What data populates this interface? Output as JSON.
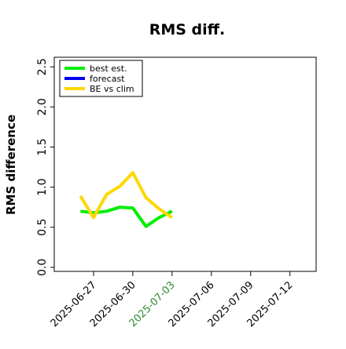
{
  "chart_data": {
    "type": "line",
    "title": "RMS diff.",
    "xlabel": "",
    "ylabel": "RMS difference",
    "ylim": [
      -0.05,
      2.62
    ],
    "xlim": [
      "2025-06-24",
      "2025-07-14"
    ],
    "yticks": [
      "0.0",
      "0.5",
      "1.0",
      "1.5",
      "2.0",
      "2.5"
    ],
    "xticks": [
      {
        "label": "2025-06-27",
        "date": "2025-06-27",
        "color": "#000000"
      },
      {
        "label": "2025-06-30",
        "date": "2025-06-30",
        "color": "#000000"
      },
      {
        "label": "2025-07-03",
        "date": "2025-07-03",
        "color": "#2e8b2e"
      },
      {
        "label": "2025-07-06",
        "date": "2025-07-06",
        "color": "#000000"
      },
      {
        "label": "2025-07-09",
        "date": "2025-07-09",
        "color": "#000000"
      },
      {
        "label": "2025-07-12",
        "date": "2025-07-12",
        "color": "#000000"
      }
    ],
    "grid": false,
    "legend_position": "top-left",
    "series": [
      {
        "name": "best est.",
        "color": "#00ee00",
        "x": [
          "2025-06-26",
          "2025-06-27",
          "2025-06-28",
          "2025-06-29",
          "2025-06-30",
          "2025-07-01",
          "2025-07-02",
          "2025-07-03"
        ],
        "y": [
          0.7,
          0.68,
          0.7,
          0.75,
          0.74,
          0.51,
          0.62,
          0.7
        ]
      },
      {
        "name": "forecast",
        "color": "#0000ee",
        "x": [],
        "y": []
      },
      {
        "name": "BE vs clim",
        "color": "#ffd700",
        "x": [
          "2025-06-26",
          "2025-06-27",
          "2025-06-28",
          "2025-06-29",
          "2025-06-30",
          "2025-07-01",
          "2025-07-02",
          "2025-07-03"
        ],
        "y": [
          0.89,
          0.62,
          0.91,
          1.01,
          1.18,
          0.87,
          0.73,
          0.62
        ]
      }
    ]
  }
}
